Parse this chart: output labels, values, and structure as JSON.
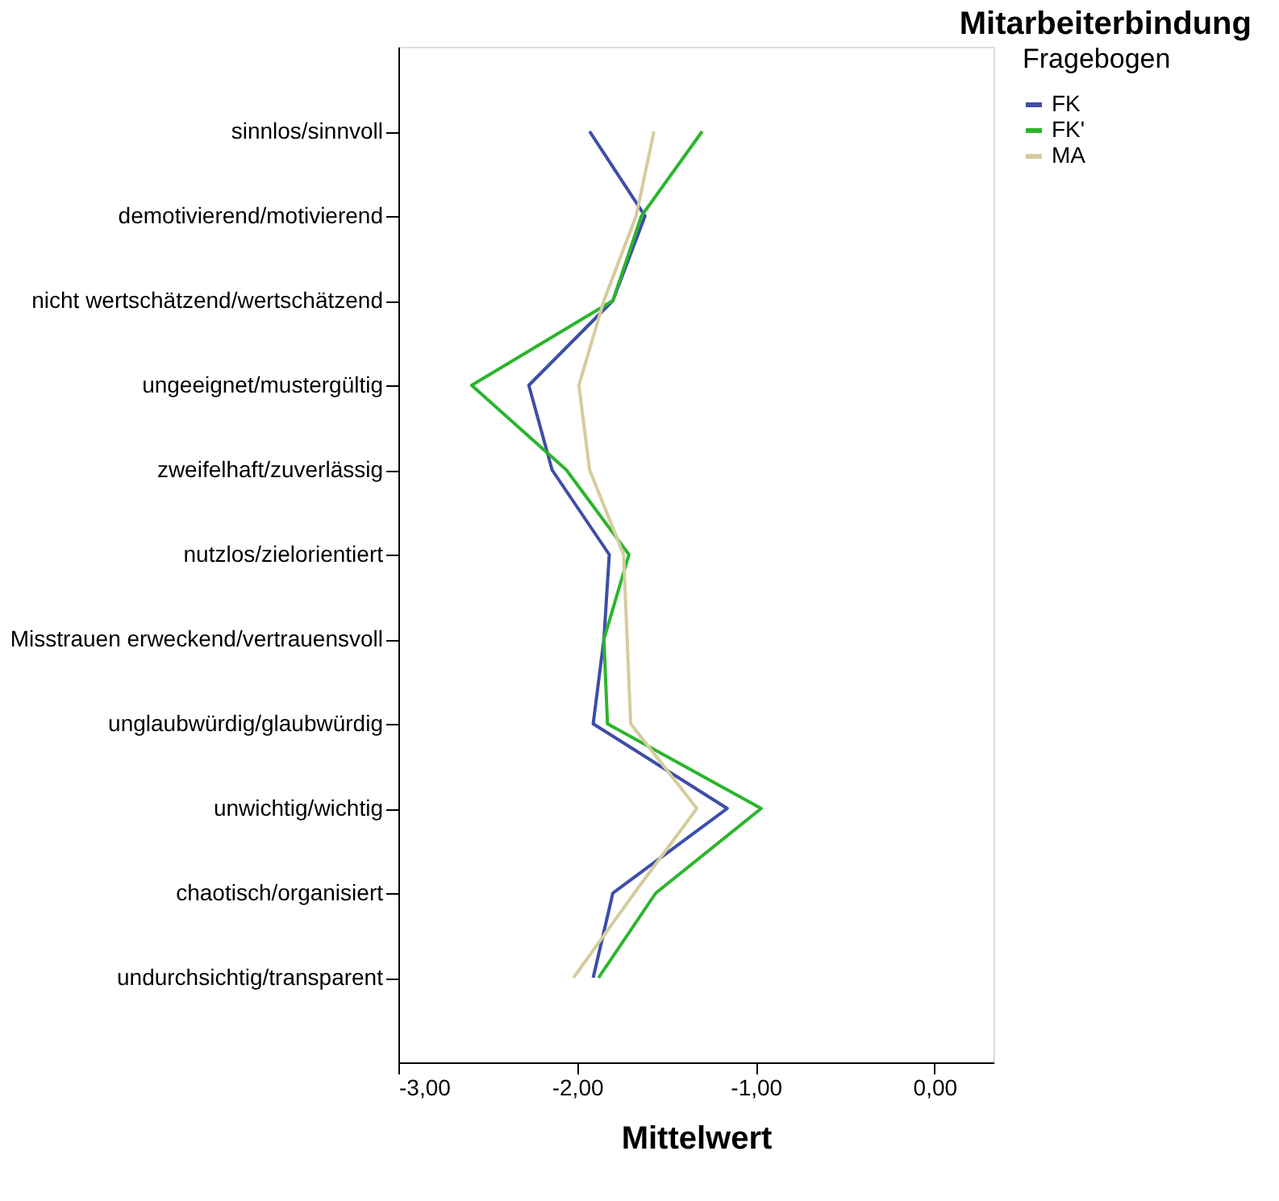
{
  "chart_data": {
    "type": "line",
    "orientation": "horizontal",
    "title": "Mitarbeiterbindung",
    "xlabel": "Mittelwert",
    "legend_title": "Fragebogen",
    "legend": "right",
    "grid": false,
    "categories": [
      "sinnlos/sinnvoll",
      "demotivierend/motivierend",
      "nicht wertschätzend/wertschätzend",
      "ungeeignet/mustergültig",
      "zweifelhaft/zuverlässig",
      "nutzlos/zielorientiert",
      "Misstrauen erweckend/vertrauensvoll",
      "unglaubwürdig/glaubwürdig",
      "unwichtig/wichtig",
      "chaotisch/organisiert",
      "undurchsichtig/transparent"
    ],
    "xlim": [
      -3,
      0.33
    ],
    "xticks": [
      {
        "value": -3,
        "label": "-3,00"
      },
      {
        "value": -2,
        "label": "-2,00"
      },
      {
        "value": -1,
        "label": "-1,00"
      },
      {
        "value": 0,
        "label": "0,00"
      }
    ],
    "series": [
      {
        "name": "FK",
        "color": "#3c4ea8",
        "values": [
          -1.93,
          -1.62,
          -1.8,
          -2.27,
          -2.14,
          -1.82,
          -1.85,
          -1.91,
          -1.16,
          -1.8,
          -1.91
        ]
      },
      {
        "name": "FK'",
        "color": "#2bb52b",
        "values": [
          -1.3,
          -1.64,
          -1.8,
          -2.59,
          -2.06,
          -1.71,
          -1.85,
          -1.83,
          -0.97,
          -1.56,
          -1.88
        ]
      },
      {
        "name": "MA",
        "color": "#d4cc9c",
        "values": [
          -1.57,
          -1.67,
          -1.85,
          -1.99,
          -1.93,
          -1.74,
          -1.72,
          -1.7,
          -1.33,
          -1.68,
          -2.02
        ]
      }
    ]
  }
}
